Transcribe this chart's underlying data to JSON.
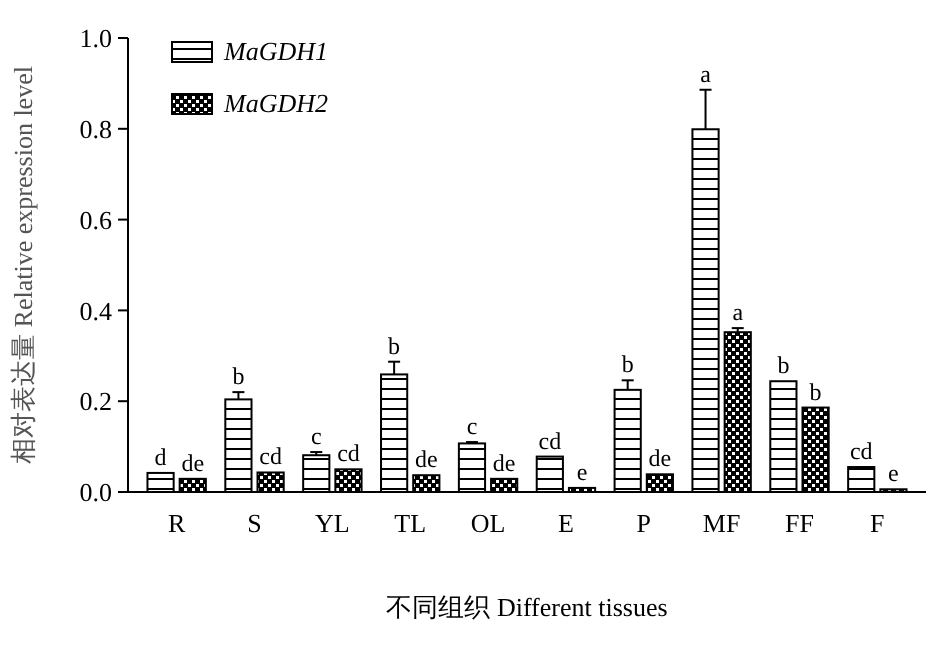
{
  "chart_data": {
    "type": "bar",
    "xlabel": "不同组织 Different tissues",
    "ylabel": "相对表达量 Relative expression level",
    "categories": [
      "R",
      "S",
      "YL",
      "TL",
      "OL",
      "E",
      "P",
      "MF",
      "FF",
      "F"
    ],
    "series": [
      {
        "name": "MaGDH1",
        "color": "#000000",
        "values": [
          0.042,
          0.204,
          0.081,
          0.259,
          0.107,
          0.078,
          0.225,
          0.799,
          0.244,
          0.055
        ],
        "errors": [
          null,
          0.016,
          0.007,
          0.028,
          0.003,
          null,
          0.021,
          0.087,
          null,
          null
        ],
        "value_labels": [
          "d",
          "b",
          "c",
          "b",
          "c",
          "cd",
          "b",
          "a",
          "b",
          "cd"
        ]
      },
      {
        "name": "MaGDH2",
        "color": "#000000",
        "values": [
          0.029,
          0.043,
          0.05,
          0.037,
          0.029,
          0.009,
          0.039,
          0.352,
          0.186,
          0.006
        ],
        "errors": [
          null,
          null,
          null,
          null,
          null,
          null,
          null,
          0.009,
          null,
          null
        ],
        "value_labels": [
          "de",
          "cd",
          "cd",
          "de",
          "de",
          "e",
          "de",
          "a",
          "b",
          "e"
        ]
      }
    ],
    "ylim": [
      0,
      1
    ],
    "yticks": [
      {
        "value": 0,
        "label": "0.0"
      },
      {
        "value": 0.2,
        "label": "0.2"
      },
      {
        "value": 0.4,
        "label": "0.4"
      },
      {
        "value": 0.6,
        "label": "0.6"
      },
      {
        "value": 0.8,
        "label": "0.8"
      },
      {
        "value": 1,
        "label": "1.0"
      }
    ],
    "legend": "top left",
    "grid": false
  }
}
